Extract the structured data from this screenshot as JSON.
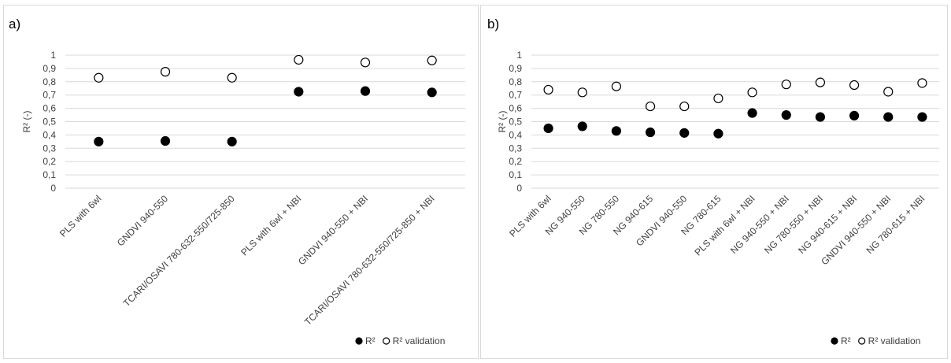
{
  "chart_data": [
    {
      "type": "scatter",
      "panel_label": "a)",
      "ylabel": "R² (-)",
      "ylim": [
        0,
        1
      ],
      "yticks": [
        "0",
        "0,1",
        "0,2",
        "0,3",
        "0,4",
        "0,5",
        "0,6",
        "0,7",
        "0,8",
        "0,9",
        "1"
      ],
      "grid": true,
      "legend_position": "bottom-right",
      "categories": [
        "PLS with 6wl",
        "GNDVI 940-550",
        "TCARI/OSAVI 780-632-550/725-850",
        "PLS with 6wl + NBI",
        "GNDVI 940-550 + NBI",
        "TCARI/OSAVI 780-632-550/725-850 + NBI"
      ],
      "series": [
        {
          "name": "R²",
          "marker": "filled-circle",
          "values": [
            0.35,
            0.355,
            0.35,
            0.725,
            0.73,
            0.72
          ]
        },
        {
          "name": "R² validation",
          "marker": "open-circle",
          "values": [
            0.83,
            0.875,
            0.83,
            0.965,
            0.945,
            0.96
          ]
        }
      ]
    },
    {
      "type": "scatter",
      "panel_label": "b)",
      "ylabel": "R² (-)",
      "ylim": [
        0,
        1
      ],
      "yticks": [
        "0",
        "0,1",
        "0,2",
        "0,3",
        "0,4",
        "0,5",
        "0,6",
        "0,7",
        "0,8",
        "0,9",
        "1"
      ],
      "grid": true,
      "legend_position": "bottom-right",
      "categories": [
        "PLS with 6wl",
        "NG 940-550",
        "NG 780-550",
        "NG 940-615",
        "GNDVI 940-550",
        "NG 780-615",
        "PLS with 6wl + NBI",
        "NG 940-550 + NBI",
        "NG 780-550 + NBI",
        "NG 940-615 + NBI",
        "GNDVI 940-550 + NBI",
        "NG 780-615 + NBI"
      ],
      "series": [
        {
          "name": "R²",
          "marker": "filled-circle",
          "values": [
            0.45,
            0.465,
            0.43,
            0.42,
            0.415,
            0.41,
            0.565,
            0.55,
            0.535,
            0.545,
            0.535,
            0.535
          ]
        },
        {
          "name": "R² validation",
          "marker": "open-circle",
          "values": [
            0.74,
            0.72,
            0.765,
            0.615,
            0.615,
            0.675,
            0.72,
            0.78,
            0.795,
            0.775,
            0.725,
            0.79
          ]
        }
      ]
    }
  ]
}
